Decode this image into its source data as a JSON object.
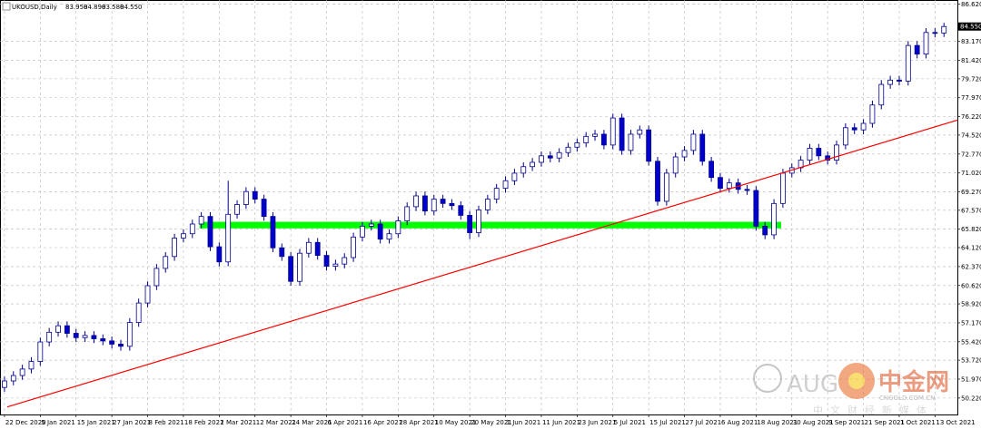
{
  "chart_data": {
    "type": "candlestick",
    "title": "UKOUSD,Daily",
    "last_labels": [
      "83.950",
      "84.890",
      "83.580",
      "84.550"
    ],
    "up_color": "#ffffff",
    "down_color": "#0000cd",
    "outline_color": "#00008b",
    "grid": true,
    "xlim": [
      -0.5,
      106.5
    ],
    "ylim": [
      48.7,
      87.0
    ],
    "yticks": [
      {
        "value": 86.62,
        "label": "86.620"
      },
      {
        "value": 83.17,
        "label": "83.170"
      },
      {
        "value": 81.42,
        "label": "81.420"
      },
      {
        "value": 79.72,
        "label": "79.720"
      },
      {
        "value": 77.97,
        "label": "77.970"
      },
      {
        "value": 76.22,
        "label": "76.220"
      },
      {
        "value": 74.52,
        "label": "74.520"
      },
      {
        "value": 72.77,
        "label": "72.770"
      },
      {
        "value": 71.02,
        "label": "71.020"
      },
      {
        "value": 69.27,
        "label": "69.270"
      },
      {
        "value": 67.57,
        "label": "67.570"
      },
      {
        "value": 65.82,
        "label": "65.820"
      },
      {
        "value": 64.12,
        "label": "64.120"
      },
      {
        "value": 62.37,
        "label": "62.370"
      },
      {
        "value": 60.62,
        "label": "60.620"
      },
      {
        "value": 58.92,
        "label": "58.920"
      },
      {
        "value": 57.17,
        "label": "57.170"
      },
      {
        "value": 55.42,
        "label": "55.420"
      },
      {
        "value": 53.72,
        "label": "53.720"
      },
      {
        "value": 51.97,
        "label": "51.970"
      },
      {
        "value": 50.22,
        "label": "50.220"
      }
    ],
    "xticks": [
      {
        "value": 0,
        "label": "22 Dec 2020"
      },
      {
        "value": 4,
        "label": "5 Jan 2021"
      },
      {
        "value": 8,
        "label": "15 Jan 2021"
      },
      {
        "value": 12,
        "label": "27 Jan 2021"
      },
      {
        "value": 16,
        "label": "8 Feb 2021"
      },
      {
        "value": 20,
        "label": "18 Feb 2021"
      },
      {
        "value": 24,
        "label": "2 Mar 2021"
      },
      {
        "value": 28,
        "label": "12 Mar 2021"
      },
      {
        "value": 32,
        "label": "24 Mar 2021"
      },
      {
        "value": 36,
        "label": "6 Apr 2021"
      },
      {
        "value": 40,
        "label": "16 Apr 2021"
      },
      {
        "value": 44,
        "label": "28 Apr 2021"
      },
      {
        "value": 48,
        "label": "10 May 2021"
      },
      {
        "value": 52,
        "label": "20 May 2021"
      },
      {
        "value": 56,
        "label": "1 Jun 2021"
      },
      {
        "value": 60,
        "label": "11 Jun 2021"
      },
      {
        "value": 64,
        "label": "23 Jun 2021"
      },
      {
        "value": 68,
        "label": "5 Jul 2021"
      },
      {
        "value": 72,
        "label": "15 Jul 2021"
      },
      {
        "value": 76,
        "label": "27 Jul 2021"
      },
      {
        "value": 80,
        "label": "6 Aug 2021"
      },
      {
        "value": 84,
        "label": "18 Aug 2021"
      },
      {
        "value": 88,
        "label": "30 Aug 2021"
      },
      {
        "value": 92,
        "label": "9 Sep 2021"
      },
      {
        "value": 96,
        "label": "21 Sep 2021"
      },
      {
        "value": 100,
        "label": "1 Oct 2021"
      },
      {
        "value": 104,
        "label": "13 Oct 2021"
      }
    ],
    "candles": [
      [
        51.2,
        52.2,
        50.8,
        51.8
      ],
      [
        51.8,
        52.7,
        51.4,
        52.3
      ],
      [
        52.3,
        53.3,
        51.9,
        52.9
      ],
      [
        52.9,
        54.0,
        52.5,
        53.6
      ],
      [
        53.6,
        55.8,
        53.2,
        55.4
      ],
      [
        55.4,
        56.7,
        55.0,
        56.3
      ],
      [
        56.3,
        57.3,
        55.9,
        56.9
      ],
      [
        56.9,
        57.3,
        55.8,
        56.2
      ],
      [
        56.2,
        56.6,
        55.4,
        55.8
      ],
      [
        55.8,
        56.4,
        55.4,
        56.0
      ],
      [
        56.0,
        56.4,
        55.3,
        55.7
      ],
      [
        55.7,
        56.1,
        55.1,
        55.5
      ],
      [
        55.5,
        55.9,
        54.8,
        55.2
      ],
      [
        55.2,
        55.6,
        54.6,
        55.0
      ],
      [
        55.0,
        57.6,
        54.6,
        57.2
      ],
      [
        57.2,
        59.4,
        56.8,
        59.0
      ],
      [
        59.0,
        61.0,
        58.6,
        60.6
      ],
      [
        60.6,
        62.6,
        60.2,
        62.2
      ],
      [
        62.2,
        63.7,
        61.8,
        63.3
      ],
      [
        63.3,
        65.4,
        62.9,
        65.0
      ],
      [
        65.0,
        65.8,
        64.6,
        65.4
      ],
      [
        65.4,
        66.7,
        65.0,
        66.3
      ],
      [
        66.3,
        67.4,
        65.9,
        67.0
      ],
      [
        67.0,
        67.4,
        63.8,
        64.2
      ],
      [
        64.2,
        64.6,
        62.4,
        62.8
      ],
      [
        62.8,
        70.3,
        62.4,
        67.2
      ],
      [
        67.2,
        68.5,
        66.8,
        68.1
      ],
      [
        68.1,
        69.7,
        67.7,
        69.3
      ],
      [
        69.3,
        69.7,
        68.2,
        68.6
      ],
      [
        68.6,
        69.0,
        66.6,
        67.0
      ],
      [
        67.0,
        67.4,
        63.7,
        64.1
      ],
      [
        64.1,
        64.5,
        62.9,
        63.3
      ],
      [
        63.3,
        63.7,
        60.6,
        61.0
      ],
      [
        61.0,
        64.0,
        60.6,
        63.6
      ],
      [
        63.6,
        65.0,
        63.2,
        64.6
      ],
      [
        64.6,
        65.0,
        63.0,
        63.4
      ],
      [
        63.4,
        63.8,
        62.0,
        62.4
      ],
      [
        62.4,
        63.0,
        62.0,
        62.6
      ],
      [
        62.6,
        63.6,
        62.2,
        63.2
      ],
      [
        63.2,
        65.5,
        62.8,
        65.1
      ],
      [
        65.1,
        66.5,
        64.7,
        66.1
      ],
      [
        66.1,
        66.7,
        65.7,
        66.3
      ],
      [
        66.3,
        66.7,
        64.5,
        64.9
      ],
      [
        64.9,
        65.8,
        64.5,
        65.4
      ],
      [
        65.4,
        67.0,
        65.0,
        66.6
      ],
      [
        66.6,
        68.3,
        66.2,
        67.9
      ],
      [
        67.9,
        69.3,
        67.5,
        68.9
      ],
      [
        68.9,
        69.3,
        67.1,
        67.5
      ],
      [
        67.5,
        69.0,
        67.1,
        68.6
      ],
      [
        68.6,
        69.0,
        67.8,
        68.2
      ],
      [
        68.2,
        68.6,
        67.6,
        68.0
      ],
      [
        68.0,
        68.4,
        66.7,
        67.1
      ],
      [
        67.1,
        67.5,
        64.9,
        65.5
      ],
      [
        65.5,
        68.0,
        65.1,
        67.6
      ],
      [
        67.6,
        69.0,
        67.2,
        68.6
      ],
      [
        68.6,
        70.0,
        68.2,
        69.6
      ],
      [
        69.6,
        70.7,
        69.2,
        70.3
      ],
      [
        70.3,
        71.4,
        69.9,
        71.0
      ],
      [
        71.0,
        72.0,
        70.6,
        71.6
      ],
      [
        71.6,
        72.4,
        71.2,
        72.0
      ],
      [
        72.0,
        73.0,
        71.6,
        72.6
      ],
      [
        72.6,
        73.0,
        72.0,
        72.4
      ],
      [
        72.4,
        73.3,
        72.0,
        72.9
      ],
      [
        72.9,
        73.8,
        72.5,
        73.4
      ],
      [
        73.4,
        74.2,
        73.0,
        73.8
      ],
      [
        73.8,
        74.8,
        73.4,
        74.4
      ],
      [
        74.4,
        75.0,
        74.0,
        74.6
      ],
      [
        74.6,
        75.0,
        73.2,
        73.6
      ],
      [
        73.6,
        76.5,
        73.2,
        76.1
      ],
      [
        76.1,
        76.5,
        72.7,
        73.1
      ],
      [
        73.1,
        75.0,
        72.7,
        74.6
      ],
      [
        74.6,
        75.4,
        74.2,
        75.0
      ],
      [
        75.0,
        75.4,
        71.7,
        72.1
      ],
      [
        72.1,
        72.5,
        68.0,
        68.4
      ],
      [
        68.4,
        71.4,
        68.0,
        71.0
      ],
      [
        71.0,
        72.9,
        70.6,
        72.5
      ],
      [
        72.5,
        73.5,
        72.1,
        73.1
      ],
      [
        73.1,
        75.0,
        72.7,
        74.6
      ],
      [
        74.6,
        75.0,
        71.7,
        72.1
      ],
      [
        72.1,
        72.5,
        70.2,
        70.6
      ],
      [
        70.6,
        71.0,
        69.2,
        69.6
      ],
      [
        69.6,
        70.5,
        69.2,
        70.1
      ],
      [
        70.1,
        70.5,
        69.1,
        69.5
      ],
      [
        69.5,
        69.9,
        69.0,
        69.4
      ],
      [
        69.4,
        69.8,
        65.7,
        66.1
      ],
      [
        66.1,
        66.5,
        64.9,
        65.3
      ],
      [
        65.3,
        68.6,
        64.9,
        68.2
      ],
      [
        68.2,
        71.4,
        67.8,
        71.0
      ],
      [
        71.0,
        71.9,
        70.6,
        71.5
      ],
      [
        71.5,
        72.6,
        71.1,
        72.2
      ],
      [
        72.2,
        73.7,
        71.8,
        73.3
      ],
      [
        73.3,
        73.7,
        72.2,
        72.6
      ],
      [
        72.6,
        73.0,
        71.8,
        72.2
      ],
      [
        72.2,
        74.0,
        71.8,
        73.6
      ],
      [
        73.6,
        75.6,
        73.2,
        75.2
      ],
      [
        75.2,
        75.6,
        74.6,
        75.0
      ],
      [
        75.0,
        76.0,
        74.6,
        75.6
      ],
      [
        75.6,
        77.7,
        75.2,
        77.3
      ],
      [
        77.3,
        79.6,
        76.9,
        79.2
      ],
      [
        79.2,
        80.0,
        78.8,
        79.6
      ],
      [
        79.6,
        80.0,
        79.1,
        79.5
      ],
      [
        79.5,
        83.2,
        79.1,
        82.8
      ],
      [
        82.8,
        83.2,
        81.6,
        82.0
      ],
      [
        82.0,
        84.4,
        81.6,
        84.0
      ],
      [
        84.0,
        84.4,
        83.55,
        83.95
      ],
      [
        83.95,
        84.89,
        83.58,
        84.55
      ]
    ],
    "trendline": {
      "x": [
        0.3,
        106.5
      ],
      "y": [
        49.4,
        75.9
      ],
      "color": "#ff0000"
    },
    "support_zone": {
      "x": [
        21.8,
        86.8
      ],
      "y": [
        65.9,
        66.5
      ],
      "color": "#00ff00"
    },
    "watermark": {
      "brand": "AUG",
      "logo_text": "中金网",
      "site": "CNGOLD.COM.CN",
      "tagline": "中文财经新媒体"
    }
  }
}
